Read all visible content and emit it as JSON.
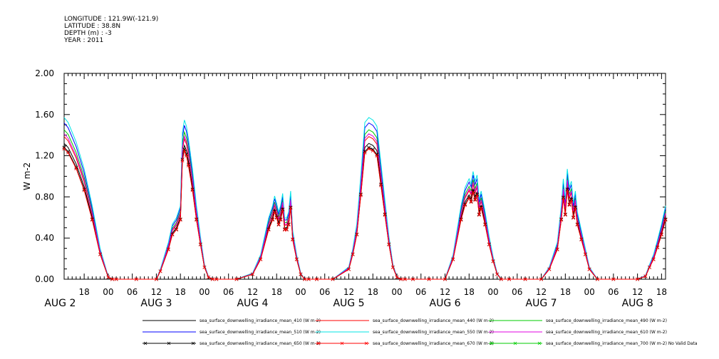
{
  "header": {
    "longitude": "LONGITUDE : 121.9W(-121.9)",
    "latitude": "LATITUDE : 38.8N",
    "depth": "DEPTH (m) : -3",
    "year": "YEAR : 2011"
  },
  "chart_data": {
    "type": "line",
    "ylabel": "W m-2",
    "ylim": [
      0,
      2.0
    ],
    "yticks": [
      "0.00",
      "0.40",
      "0.80",
      "1.20",
      "1.60",
      "2.00"
    ],
    "x_unit": "hours since Aug 1 2011 00:00 (local)",
    "xlim": [
      37,
      187
    ],
    "hour_tick_labels": [
      "00",
      "06",
      "12",
      "18"
    ],
    "day_labels": [
      "AUG  2",
      "AUG  3",
      "AUG  4",
      "AUG  5",
      "AUG  6",
      "AUG  7",
      "AUG  8"
    ],
    "grid": false,
    "legend_position": "bottom",
    "series": [
      {
        "name": "sea_surface_downwelling_irradiance_mean_410 (W m-2)",
        "color": "#000000",
        "marker": "none",
        "scale": 1.0
      },
      {
        "name": "sea_surface_downwelling_irradiance_mean_440 (W m-2)",
        "color": "#ff0000",
        "marker": "none",
        "scale": 1.05
      },
      {
        "name": "sea_surface_downwelling_irradiance_mean_490 (W m-2)",
        "color": "#00cc00",
        "marker": "none",
        "scale": 1.1
      },
      {
        "name": "sea_surface_downwelling_irradiance_mean_510 (W m-2)",
        "color": "#0000ff",
        "marker": "none",
        "scale": 1.15
      },
      {
        "name": "sea_surface_downwelling_irradiance_mean_550 (W m-2)",
        "color": "#00e5e5",
        "marker": "none",
        "scale": 1.19
      },
      {
        "name": "sea_surface_downwelling_irradiance_mean_610 (W m-2)",
        "color": "#e000e0",
        "marker": "none",
        "scale": 1.07
      },
      {
        "name": "sea_surface_downwelling_irradiance_mean_650 (W m-2)",
        "color": "#000000",
        "marker": "x",
        "scale": 0.97
      },
      {
        "name": "sea_surface_downwelling_irradiance_mean_670 (W m-2)",
        "color": "#ff0000",
        "marker": "x",
        "scale": 0.96
      },
      {
        "name": "sea_surface_downwelling_irradiance_mean_700 (W m-2) No Valid Data",
        "color": "#00cc00",
        "marker": "x",
        "scale": 0
      }
    ],
    "base_profile_x": [
      37,
      38,
      40,
      42,
      44,
      46,
      48,
      49,
      50,
      55,
      60,
      61,
      63,
      64,
      65,
      66,
      66.5,
      67,
      67.5,
      68,
      69,
      70,
      71,
      72,
      73,
      74,
      75,
      80,
      84,
      86,
      88,
      89,
      89.5,
      90,
      90.5,
      91,
      91.5,
      92,
      92.5,
      93,
      93.5,
      94,
      95,
      96,
      97,
      98,
      100,
      104,
      108,
      109,
      110,
      111,
      112,
      113,
      114,
      115,
      116,
      117,
      118,
      119,
      120,
      121,
      122,
      124,
      128,
      132,
      134,
      136,
      137,
      138,
      138.5,
      139,
      139.5,
      140,
      140.5,
      141,
      142,
      143,
      144,
      145,
      146,
      148,
      152,
      156,
      158,
      160,
      161,
      161.5,
      162,
      162.5,
      163,
      163.5,
      164,
      164.5,
      165,
      166,
      167,
      168,
      170,
      174,
      180,
      182,
      183,
      184,
      185,
      186,
      187
    ],
    "base_profile_y": [
      1.32,
      1.28,
      1.12,
      0.9,
      0.6,
      0.25,
      0.02,
      0.0,
      0.0,
      0.0,
      0.0,
      0.08,
      0.3,
      0.45,
      0.5,
      0.6,
      1.2,
      1.3,
      1.25,
      1.15,
      0.9,
      0.6,
      0.35,
      0.12,
      0.02,
      0.0,
      0.0,
      0.0,
      0.05,
      0.2,
      0.5,
      0.6,
      0.68,
      0.62,
      0.55,
      0.6,
      0.7,
      0.5,
      0.5,
      0.55,
      0.72,
      0.4,
      0.2,
      0.05,
      0.0,
      0.0,
      0.0,
      0.0,
      0.1,
      0.25,
      0.45,
      0.85,
      1.28,
      1.32,
      1.3,
      1.25,
      0.95,
      0.65,
      0.35,
      0.12,
      0.02,
      0.0,
      0.0,
      0.0,
      0.0,
      0.0,
      0.2,
      0.6,
      0.75,
      0.82,
      0.78,
      0.88,
      0.8,
      0.85,
      0.65,
      0.72,
      0.55,
      0.35,
      0.18,
      0.05,
      0.0,
      0.0,
      0.0,
      0.0,
      0.1,
      0.3,
      0.6,
      0.82,
      0.65,
      0.9,
      0.75,
      0.8,
      0.62,
      0.72,
      0.55,
      0.4,
      0.25,
      0.1,
      0.0,
      0.0,
      0.0,
      0.03,
      0.12,
      0.2,
      0.32,
      0.45,
      0.6
    ]
  }
}
